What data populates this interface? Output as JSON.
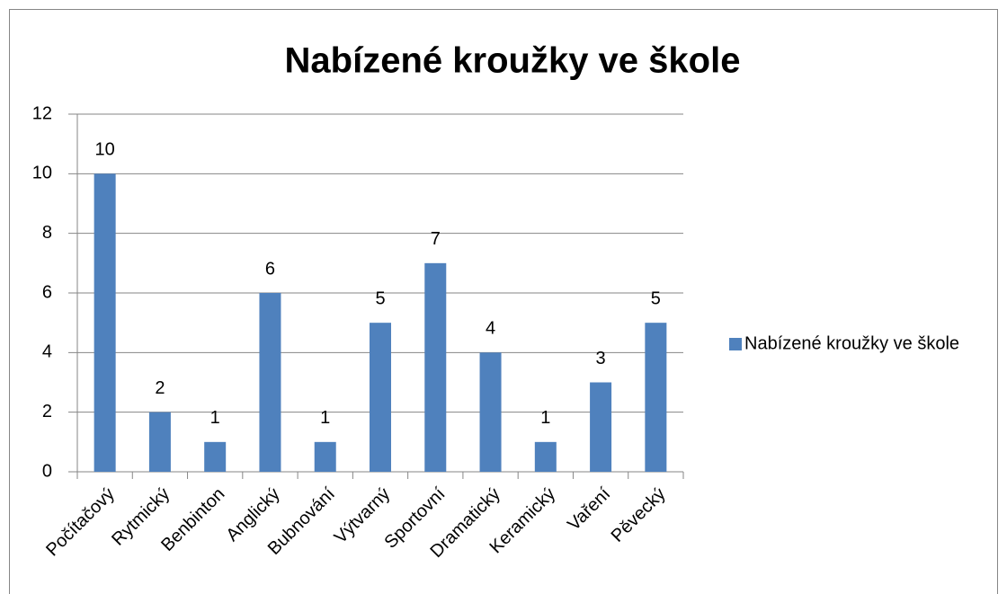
{
  "chart_data": {
    "type": "bar",
    "title": "Nabízené kroužky ve škole",
    "categories": [
      "Počítačový",
      "Rytmický",
      "Benbinton",
      "Anglický",
      "Bubnování",
      "Výtvarný",
      "Sportovní",
      "Dramatický",
      "Keramický",
      "Vaření",
      "Pěvecký"
    ],
    "series": [
      {
        "name": "Nabízené kroužky ve škole",
        "color": "#4f81bd",
        "values": [
          10,
          2,
          1,
          6,
          1,
          5,
          7,
          4,
          1,
          3,
          5
        ]
      }
    ],
    "ylim": [
      0,
      12
    ],
    "yticks": [
      0,
      2,
      4,
      6,
      8,
      10,
      12
    ],
    "grid": true,
    "legend": "right"
  }
}
